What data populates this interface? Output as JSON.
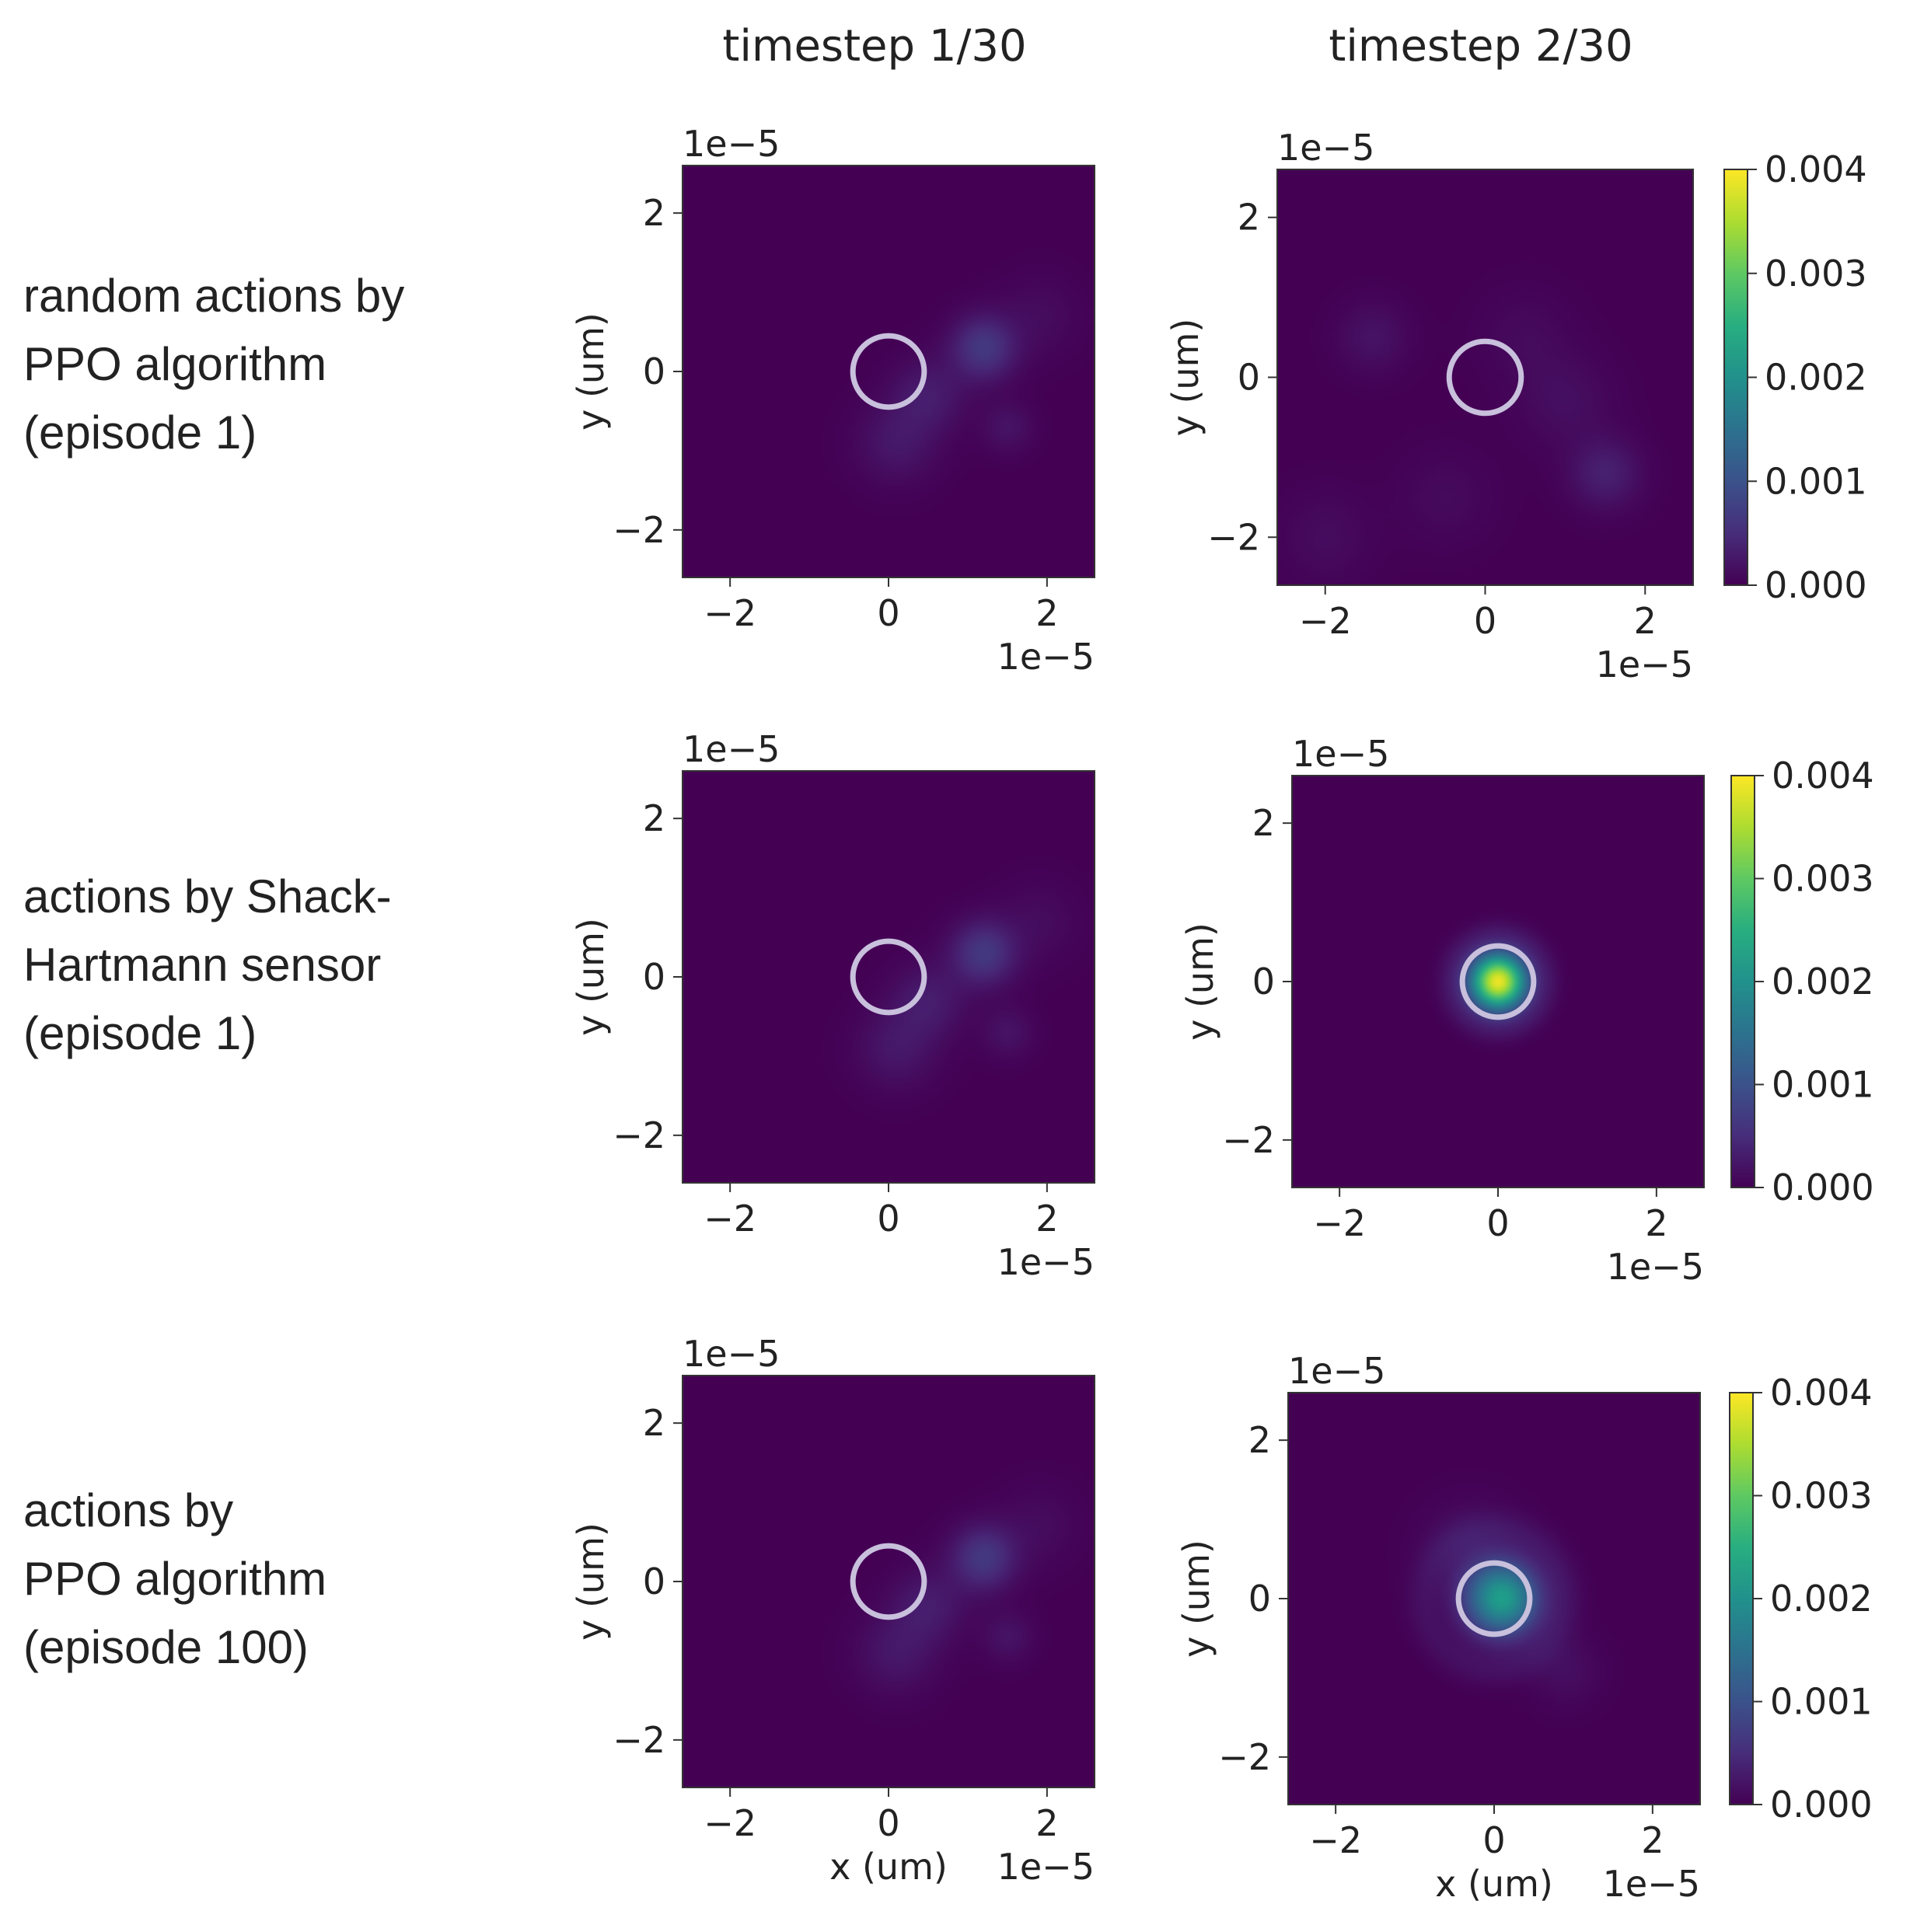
{
  "chart_data": {
    "type": "heatmap",
    "title": "",
    "columns": [
      "timestep 1/30",
      "timestep 2/30"
    ],
    "rows": [
      {
        "label_lines": [
          "random actions by",
          "PPO algorithm",
          "(episode 1)"
        ]
      },
      {
        "label_lines": [
          "actions by Shack-",
          "Hartmann sensor",
          "(episode 1)"
        ]
      },
      {
        "label_lines": [
          "actions by",
          "PPO algorithm",
          "(episode 100)"
        ]
      }
    ],
    "xlabel": "x (um)",
    "ylabel": "y (um)",
    "axis_multiplier": "1e−5",
    "xlim": [
      -2.6e-05,
      2.6e-05
    ],
    "ylim": [
      -2.6e-05,
      2.6e-05
    ],
    "x_ticks": [
      -2e-05,
      0,
      2e-05
    ],
    "y_ticks": [
      -2e-05,
      0,
      2e-05
    ],
    "tick_labels": [
      "−2",
      "0",
      "2"
    ],
    "target_circle": {
      "center": [
        0,
        0
      ],
      "radius": 4.5e-06,
      "color": "#c8c0dc"
    },
    "colorbar": {
      "min": 0.0,
      "max": 0.004,
      "ticks": [
        0.0,
        0.001,
        0.002,
        0.003,
        0.004
      ],
      "tick_labels": [
        "0.000",
        "0.001",
        "0.002",
        "0.003",
        "0.004"
      ],
      "colormap": "viridis"
    },
    "panels": [
      {
        "row": 0,
        "col": 0,
        "name": "panel-random-t1",
        "blobs": [
          {
            "x": 1.2e-05,
            "y": 3e-06,
            "sigma": 2.8e-06,
            "value": 0.00065
          },
          {
            "x": 5e-06,
            "y": -3e-06,
            "sigma": 3.2e-06,
            "value": 0.0003
          },
          {
            "x": 1e-06,
            "y": -9e-06,
            "sigma": 3.5e-06,
            "value": 0.00025
          },
          {
            "x": 1.5e-05,
            "y": -7e-06,
            "sigma": 2.2e-06,
            "value": 0.0002
          },
          {
            "x": 1.9e-05,
            "y": 7e-06,
            "sigma": 3.5e-06,
            "value": 0.00012
          }
        ]
      },
      {
        "row": 0,
        "col": 1,
        "name": "panel-random-t2",
        "blobs": [
          {
            "x": 1.5e-05,
            "y": -1.2e-05,
            "sigma": 3e-06,
            "value": 0.00035
          },
          {
            "x": -1.4e-05,
            "y": 5e-06,
            "sigma": 3e-06,
            "value": 0.0002
          },
          {
            "x": 1e-05,
            "y": -3e-06,
            "sigma": 4e-06,
            "value": 0.00015
          },
          {
            "x": -2e-05,
            "y": -2e-05,
            "sigma": 4e-06,
            "value": 0.00012
          },
          {
            "x": 5e-06,
            "y": 5e-06,
            "sigma": 4e-06,
            "value": 0.0001
          },
          {
            "x": -5e-06,
            "y": -1.5e-05,
            "sigma": 4e-06,
            "value": 0.0001
          }
        ]
      },
      {
        "row": 1,
        "col": 0,
        "name": "panel-shack-t1",
        "blobs": [
          {
            "x": 1.2e-05,
            "y": 3e-06,
            "sigma": 2.8e-06,
            "value": 0.00065
          },
          {
            "x": 5e-06,
            "y": -3e-06,
            "sigma": 3.2e-06,
            "value": 0.0003
          },
          {
            "x": 1e-06,
            "y": -9e-06,
            "sigma": 3.5e-06,
            "value": 0.00025
          },
          {
            "x": 1.5e-05,
            "y": -7e-06,
            "sigma": 2.2e-06,
            "value": 0.0002
          },
          {
            "x": 1.9e-05,
            "y": 7e-06,
            "sigma": 3.5e-06,
            "value": 0.00012
          }
        ]
      },
      {
        "row": 1,
        "col": 1,
        "name": "panel-shack-t2",
        "blobs": [
          {
            "x": 0.0,
            "y": 0.0,
            "sigma": 2.5e-06,
            "value": 0.0039
          }
        ],
        "ring": {
          "radius": 6.5e-06,
          "width": 1e-06,
          "value": 0.00012
        }
      },
      {
        "row": 2,
        "col": 0,
        "name": "panel-ppo100-t1",
        "blobs": [
          {
            "x": 1.2e-05,
            "y": 3e-06,
            "sigma": 2.8e-06,
            "value": 0.00065
          },
          {
            "x": 5e-06,
            "y": -3e-06,
            "sigma": 3.2e-06,
            "value": 0.0003
          },
          {
            "x": 1e-06,
            "y": -9e-06,
            "sigma": 3.5e-06,
            "value": 0.00025
          },
          {
            "x": 1.5e-05,
            "y": -7e-06,
            "sigma": 2.2e-06,
            "value": 0.0002
          },
          {
            "x": 1.9e-05,
            "y": 7e-06,
            "sigma": 3.5e-06,
            "value": 0.00012
          }
        ]
      },
      {
        "row": 2,
        "col": 1,
        "name": "panel-ppo100-t2",
        "blobs": [
          {
            "x": 1e-06,
            "y": 0.0,
            "sigma": 3.2e-06,
            "value": 0.0022
          },
          {
            "x": -3e-06,
            "y": 6e-06,
            "sigma": 4e-06,
            "value": 0.0002
          },
          {
            "x": 9e-06,
            "y": -9e-06,
            "sigma": 3e-06,
            "value": 0.00015
          }
        ],
        "ring": {
          "radius": 9e-06,
          "width": 1.5e-06,
          "value": 0.00015
        }
      }
    ]
  }
}
